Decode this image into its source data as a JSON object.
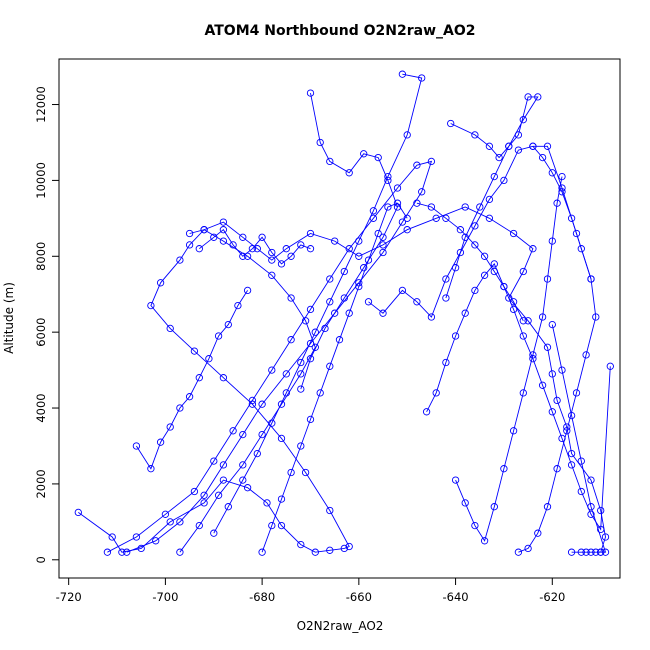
{
  "chart_data": {
    "type": "scatter",
    "mode": "lines+markers",
    "title": "ATOM4 Northbound O2N2raw_AO2",
    "xlabel": "O2N2raw_AO2",
    "ylabel": "Altitude (m)",
    "xlim": [
      -722,
      -606
    ],
    "ylim": [
      -480,
      13200
    ],
    "xticks": [
      -720,
      -700,
      -680,
      -660,
      -640,
      -620
    ],
    "yticks": [
      0,
      2000,
      4000,
      6000,
      8000,
      10000,
      12000
    ],
    "xtick_labels": [
      "-720",
      "-700",
      "-680",
      "-660",
      "-640",
      "-620"
    ],
    "ytick_labels": [
      "0",
      "2000",
      "4000",
      "6000",
      "8000",
      "10000",
      "12000"
    ],
    "grid": false,
    "legend": "none",
    "colors": {
      "series": "#0000ff",
      "axis": "#000000"
    },
    "series": [
      {
        "x": [
          -718,
          -711,
          -709,
          -705,
          -699,
          -692,
          -688,
          -683,
          -679,
          -676,
          -672,
          -669,
          -666,
          -663,
          -662,
          -666,
          -671,
          -676,
          -682,
          -688,
          -694,
          -699,
          -703,
          -701,
          -697,
          -695,
          -692,
          -688,
          -684,
          -681,
          -678,
          -675,
          -670,
          -665,
          -660,
          -655,
          -650,
          -644,
          -638,
          -633,
          -628,
          -624,
          -626,
          -629,
          -625,
          -621,
          -620,
          -619,
          -617,
          -616,
          -612,
          -610,
          -609,
          -610
        ],
        "y": [
          1250,
          600,
          200,
          300,
          1000,
          1500,
          2100,
          1900,
          1500,
          900,
          400,
          200,
          250,
          300,
          350,
          1300,
          2300,
          3200,
          4100,
          4800,
          5500,
          6100,
          6700,
          7300,
          7900,
          8300,
          8700,
          8900,
          8500,
          8200,
          7900,
          8200,
          8600,
          8400,
          8000,
          8300,
          8700,
          9000,
          9300,
          9000,
          8600,
          8200,
          7600,
          6900,
          6300,
          5600,
          4900,
          4200,
          3500,
          2800,
          2100,
          1300,
          600,
          200
        ]
      },
      {
        "x": [
          -712,
          -706,
          -700,
          -694,
          -690,
          -686,
          -682,
          -678,
          -674,
          -670,
          -666,
          -662,
          -657,
          -652,
          -648,
          -645,
          -647,
          -651,
          -655,
          -660,
          -665,
          -670,
          -675,
          -680,
          -684,
          -688,
          -692,
          -697,
          -702,
          -708
        ],
        "y": [
          200,
          600,
          1200,
          1800,
          2600,
          3400,
          4200,
          5000,
          5800,
          6600,
          7400,
          8200,
          9000,
          9800,
          10400,
          10500,
          9700,
          8900,
          8100,
          7300,
          6500,
          5700,
          4900,
          4100,
          3300,
          2500,
          1700,
          1000,
          500,
          200
        ]
      },
      {
        "x": [
          -697,
          -693,
          -689,
          -684,
          -680,
          -676,
          -672,
          -669,
          -671,
          -674,
          -678,
          -683,
          -688,
          -692,
          -695
        ],
        "y": [
          200,
          900,
          1700,
          2500,
          3300,
          4100,
          4900,
          5600,
          6300,
          6900,
          7500,
          8000,
          8400,
          8700,
          8600
        ],
        "note": ""
      },
      {
        "x": [
          -670,
          -668,
          -666,
          -662,
          -659,
          -656,
          -654,
          -652,
          -655,
          -659,
          -663,
          -667,
          -670,
          -672
        ],
        "y": [
          12300,
          11000,
          10500,
          10200,
          10700,
          10600,
          10000,
          9300,
          8500,
          7700,
          6900,
          6100,
          5300,
          4500
        ]
      },
      {
        "x": [
          -651,
          -647,
          -650,
          -654,
          -657,
          -660,
          -663,
          -666,
          -669,
          -672,
          -675,
          -678,
          -681,
          -684,
          -687,
          -690
        ],
        "y": [
          12800,
          12700,
          11200,
          10100,
          9200,
          8400,
          7600,
          6800,
          6000,
          5200,
          4400,
          3600,
          2800,
          2100,
          1400,
          700
        ]
      },
      {
        "x": [
          -641,
          -636,
          -633,
          -631,
          -629,
          -627,
          -625,
          -623,
          -626,
          -629,
          -632,
          -635,
          -638,
          -640,
          -642
        ],
        "y": [
          11500,
          11200,
          10900,
          10600,
          10900,
          11200,
          12200,
          12200,
          11600,
          10900,
          10100,
          9300,
          8500,
          7700,
          6900
        ]
      },
      {
        "x": [
          -640,
          -638,
          -636,
          -634,
          -632,
          -630,
          -628,
          -626,
          -624,
          -622,
          -621,
          -620,
          -619,
          -618
        ],
        "y": [
          2100,
          1500,
          900,
          500,
          1400,
          2400,
          3400,
          4400,
          5400,
          6400,
          7400,
          8400,
          9400,
          10100
        ]
      },
      {
        "x": [
          -624,
          -622,
          -620,
          -618,
          -616,
          -614,
          -612,
          -611,
          -613,
          -615,
          -617,
          -619,
          -621,
          -623,
          -625,
          -627
        ],
        "y": [
          10900,
          10600,
          10200,
          9700,
          9000,
          8200,
          7400,
          6400,
          5400,
          4400,
          3400,
          2400,
          1400,
          700,
          300,
          200
        ]
      },
      {
        "x": [
          -658,
          -655,
          -651,
          -648,
          -645,
          -642,
          -639,
          -636,
          -633,
          -630,
          -627,
          -624,
          -621,
          -618,
          -615,
          -612
        ],
        "y": [
          6800,
          6500,
          7100,
          6800,
          6400,
          7400,
          8100,
          8800,
          9500,
          10000,
          10800,
          10900,
          10900,
          9800,
          8600,
          7400
        ]
      },
      {
        "x": [
          -706,
          -703,
          -701,
          -699,
          -697,
          -695,
          -693,
          -691,
          -689,
          -687,
          -685,
          -683
        ],
        "y": [
          3000,
          2400,
          3100,
          3500,
          4000,
          4300,
          4800,
          5300,
          5900,
          6200,
          6700,
          7100
        ]
      },
      {
        "x": [
          -646,
          -644,
          -642,
          -640,
          -638,
          -636,
          -634,
          -632,
          -630,
          -628,
          -626,
          -624,
          -622,
          -620,
          -618,
          -616,
          -614,
          -612,
          -610,
          -608
        ],
        "y": [
          3900,
          4400,
          5200,
          5900,
          6500,
          7100,
          7500,
          7800,
          7200,
          6600,
          5900,
          5300,
          4600,
          3900,
          3200,
          2500,
          1800,
          1200,
          800,
          5100
        ]
      },
      {
        "x": [
          -680,
          -678,
          -676,
          -674,
          -672,
          -670,
          -668,
          -666,
          -664,
          -662,
          -660,
          -658,
          -656,
          -654,
          -652,
          -650
        ],
        "y": [
          200,
          900,
          1600,
          2300,
          3000,
          3700,
          4400,
          5100,
          5800,
          6500,
          7200,
          7900,
          8600,
          9300,
          9400,
          9000
        ]
      },
      {
        "x": [
          -616,
          -614,
          -613,
          -612,
          -611,
          -610,
          -609,
          -612,
          -614,
          -616,
          -618,
          -620
        ],
        "y": [
          200,
          200,
          200,
          200,
          200,
          200,
          200,
          1400,
          2600,
          3800,
          5000,
          6200
        ]
      },
      {
        "x": [
          -693,
          -690,
          -688,
          -686,
          -684,
          -682,
          -680,
          -678,
          -676,
          -674,
          -672,
          -670
        ],
        "y": [
          8200,
          8500,
          8700,
          8300,
          8000,
          8200,
          8500,
          8100,
          7800,
          8000,
          8300,
          8200
        ]
      },
      {
        "x": [
          -648,
          -645,
          -642,
          -639,
          -636,
          -634,
          -632,
          -630,
          -628,
          -626
        ],
        "y": [
          9400,
          9300,
          9000,
          8700,
          8300,
          8000,
          7600,
          7200,
          6800,
          6300
        ]
      }
    ]
  }
}
